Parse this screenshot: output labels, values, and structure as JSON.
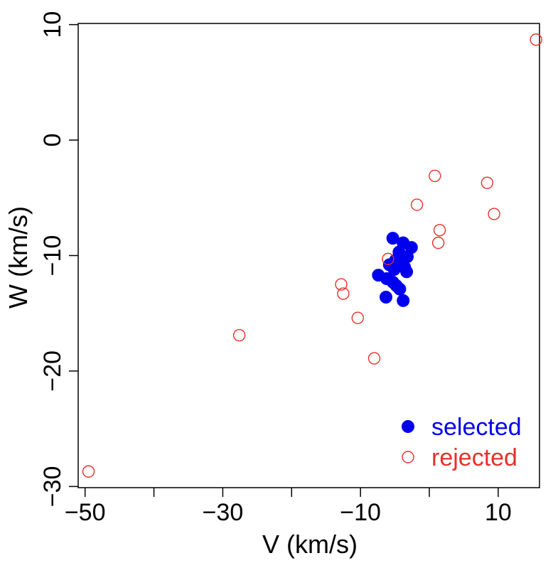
{
  "chart_data": {
    "type": "scatter",
    "xlabel": "V (km/s)",
    "ylabel": "W (km/s)",
    "xlim": [
      -51,
      16
    ],
    "ylim": [
      -30.1,
      10.1
    ],
    "x_ticks": [
      -50,
      -40,
      -30,
      -20,
      -10,
      0,
      10
    ],
    "x_tick_labels": [
      "−50",
      "",
      "−30",
      "",
      "−10",
      "",
      "10"
    ],
    "y_ticks": [
      -30,
      -20,
      -10,
      0,
      10
    ],
    "y_tick_labels": [
      "−30",
      "−20",
      "−10",
      "0",
      "10"
    ],
    "legend_position": "bottom-right",
    "grid": false,
    "series": [
      {
        "name": "selected",
        "marker": "filled-circle",
        "color": "#0000ee",
        "points": [
          [
            -5.3,
            -8.5
          ],
          [
            -3.8,
            -8.9
          ],
          [
            -2.6,
            -9.3
          ],
          [
            -4.4,
            -9.7
          ],
          [
            -3.2,
            -10.1
          ],
          [
            -4.9,
            -10.4
          ],
          [
            -5.8,
            -10.8
          ],
          [
            -4.1,
            -10.6
          ],
          [
            -3.6,
            -11.0
          ],
          [
            -5.1,
            -11.2
          ],
          [
            -3.3,
            -11.4
          ],
          [
            -7.4,
            -11.7
          ],
          [
            -6.2,
            -12.0
          ],
          [
            -5.3,
            -12.3
          ],
          [
            -4.8,
            -12.6
          ],
          [
            -4.3,
            -12.9
          ],
          [
            -6.3,
            -13.6
          ],
          [
            -3.8,
            -13.9
          ]
        ]
      },
      {
        "name": "rejected",
        "marker": "open-circle",
        "color": "#e8302a",
        "points": [
          [
            15.5,
            8.7
          ],
          [
            0.8,
            -3.1
          ],
          [
            8.4,
            -3.7
          ],
          [
            -1.8,
            -5.6
          ],
          [
            9.4,
            -6.4
          ],
          [
            1.5,
            -7.8
          ],
          [
            1.3,
            -8.9
          ],
          [
            -6.0,
            -10.3
          ],
          [
            -12.8,
            -12.5
          ],
          [
            -12.5,
            -13.3
          ],
          [
            -10.4,
            -15.4
          ],
          [
            -27.6,
            -16.9
          ],
          [
            -8.0,
            -18.9
          ],
          [
            -49.5,
            -28.7
          ]
        ]
      }
    ]
  }
}
